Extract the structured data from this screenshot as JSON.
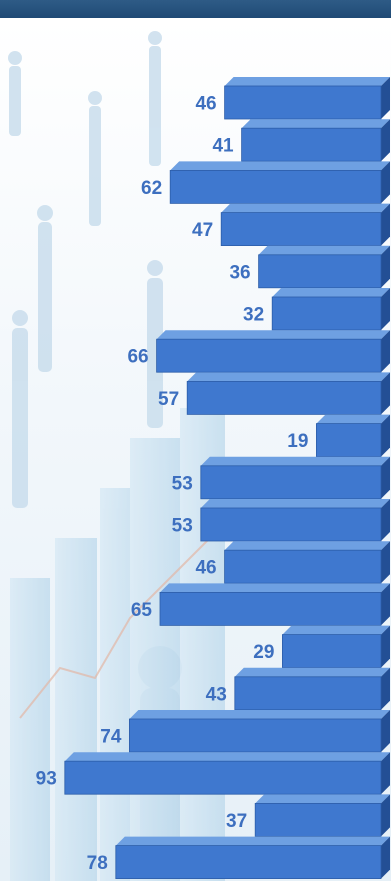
{
  "chart_data": {
    "type": "bar",
    "orientation": "horizontal",
    "values": [
      46,
      41,
      62,
      47,
      36,
      32,
      66,
      57,
      19,
      53,
      53,
      46,
      65,
      29,
      43,
      74,
      93,
      37,
      78
    ],
    "xlim": [
      0,
      100
    ],
    "grid": false,
    "legend": "none",
    "style": "3d"
  },
  "colors": {
    "bar_front": "#3f78cf",
    "bar_top": "#6ea0e2",
    "bar_side": "#234f95",
    "label": "#3d6fbf",
    "header_bar": "#24507c"
  }
}
